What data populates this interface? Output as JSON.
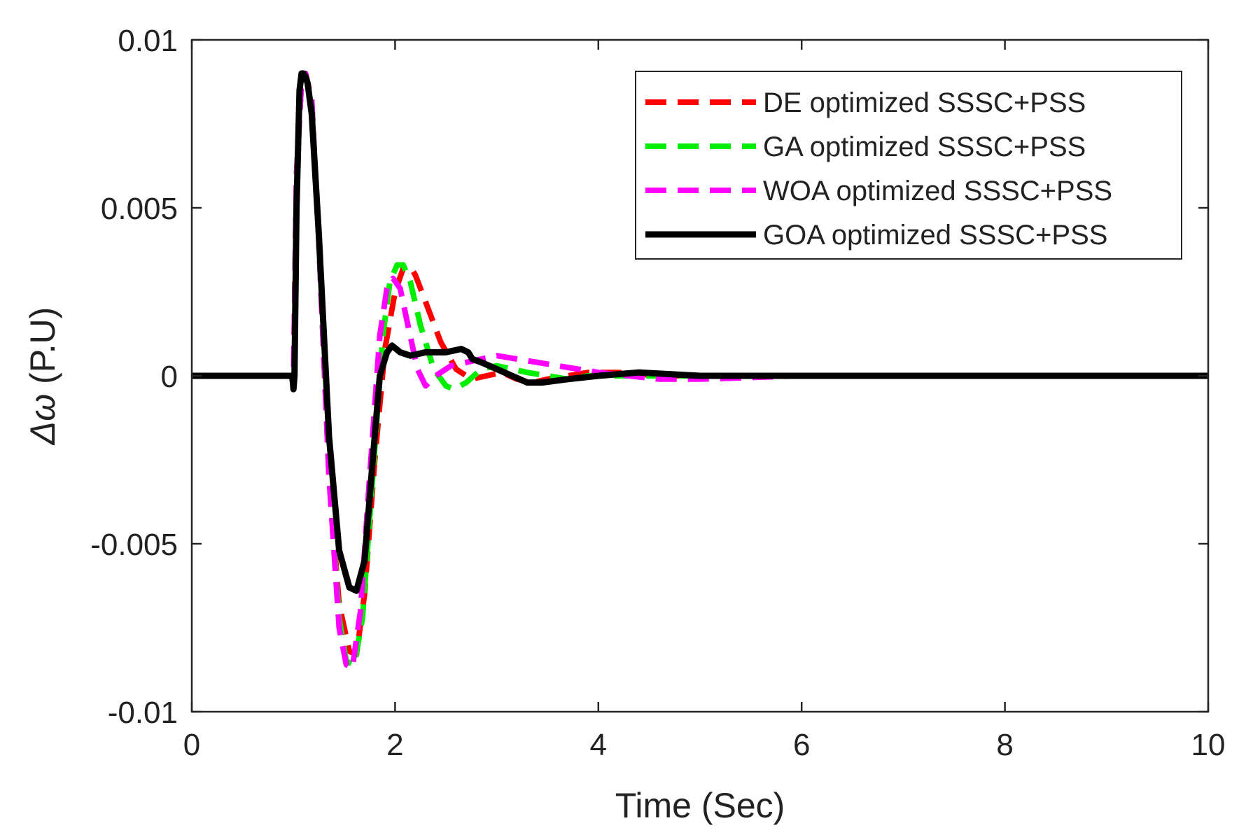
{
  "chart_data": {
    "type": "line",
    "title": "",
    "xlabel": "Time (Sec)",
    "ylabel_symbol": "Δω",
    "ylabel_unit": "(P.U)",
    "xlim": [
      0,
      10
    ],
    "ylim": [
      -0.01,
      0.01
    ],
    "xticks": [
      0,
      2,
      4,
      6,
      8,
      10
    ],
    "xtick_labels": [
      "0",
      "2",
      "4",
      "6",
      "8",
      "10"
    ],
    "yticks": [
      -0.01,
      -0.005,
      0,
      0.005,
      0.01
    ],
    "ytick_labels": [
      "-0.01",
      "-0.005",
      "0",
      "0.005",
      "0.01"
    ],
    "grid": false,
    "legend_position": "top-right",
    "series": [
      {
        "name": "DE optimized SSSC+PSS",
        "color": "#ff0000",
        "style": "dashed",
        "x": [
          0,
          0.98,
          1.0,
          1.03,
          1.08,
          1.12,
          1.18,
          1.25,
          1.35,
          1.45,
          1.55,
          1.62,
          1.7,
          1.8,
          1.9,
          2.0,
          2.08,
          2.14,
          2.2,
          2.3,
          2.45,
          2.6,
          2.75,
          2.9,
          3.05,
          3.2,
          3.35,
          3.5,
          3.7,
          3.9,
          4.2,
          4.6,
          5.0,
          6.0,
          7.0,
          8.0,
          10.0
        ],
        "y": [
          0,
          0,
          -0.0003,
          0.006,
          0.0088,
          0.009,
          0.0082,
          0.004,
          -0.003,
          -0.0068,
          -0.0082,
          -0.0083,
          -0.0065,
          -0.0025,
          0.0008,
          0.0025,
          0.0032,
          0.0033,
          0.003,
          0.0022,
          0.001,
          0.0002,
          -0.0001,
          0.0,
          0.0001,
          -0.0001,
          -0.0002,
          -0.0001,
          0.0,
          0.0001,
          0.0001,
          0.0,
          0.0,
          0.0,
          0.0,
          0.0,
          0.0
        ]
      },
      {
        "name": "GA optimized SSSC+PSS",
        "color": "#00ee00",
        "style": "dashed",
        "x": [
          0,
          0.98,
          1.0,
          1.03,
          1.08,
          1.12,
          1.18,
          1.25,
          1.35,
          1.45,
          1.52,
          1.6,
          1.68,
          1.78,
          1.88,
          1.95,
          2.02,
          2.08,
          2.15,
          2.25,
          2.38,
          2.5,
          2.58,
          2.7,
          2.85,
          3.0,
          3.15,
          3.3,
          3.5,
          3.7,
          3.9,
          4.2,
          4.6,
          5.0,
          6.0,
          7.0,
          10.0
        ],
        "y": [
          0,
          0,
          -0.0003,
          0.006,
          0.0088,
          0.009,
          0.0082,
          0.004,
          -0.003,
          -0.0072,
          -0.0085,
          -0.0086,
          -0.0072,
          -0.003,
          0.0012,
          0.0028,
          0.0033,
          0.0033,
          0.0028,
          0.0015,
          0.0002,
          -0.0003,
          -0.0004,
          -0.0002,
          0.0002,
          0.0003,
          0.0002,
          0.0001,
          0.0,
          -0.0001,
          0.0,
          0.0,
          0.0,
          0.0,
          0.0,
          0.0,
          0.0
        ]
      },
      {
        "name": "WOA optimized SSSC+PSS",
        "color": "#ff00ff",
        "style": "dashed",
        "x": [
          0,
          0.98,
          1.0,
          1.03,
          1.08,
          1.12,
          1.18,
          1.25,
          1.35,
          1.45,
          1.52,
          1.58,
          1.66,
          1.75,
          1.85,
          1.92,
          1.98,
          2.05,
          2.12,
          2.22,
          2.3,
          2.4,
          2.55,
          2.7,
          2.85,
          3.0,
          3.2,
          3.4,
          3.6,
          3.8,
          4.0,
          4.3,
          4.6,
          5.0,
          6.0,
          7.0,
          10.0
        ],
        "y": [
          0,
          0,
          -0.0003,
          0.006,
          0.0088,
          0.009,
          0.0082,
          0.004,
          -0.003,
          -0.0075,
          -0.0086,
          -0.0087,
          -0.007,
          -0.003,
          0.0012,
          0.0026,
          0.0029,
          0.0026,
          0.0016,
          0.0002,
          -0.0003,
          0.0,
          0.0003,
          0.0004,
          0.0005,
          0.0006,
          0.0005,
          0.0004,
          0.0003,
          0.0002,
          0.0001,
          0.0,
          -0.0001,
          -0.0001,
          0.0,
          0.0,
          0.0
        ]
      },
      {
        "name": "GOA optimized SSSC+PSS",
        "color": "#000000",
        "style": "solid",
        "x": [
          0,
          0.99,
          1.0,
          1.01,
          1.03,
          1.06,
          1.08,
          1.1,
          1.12,
          1.14,
          1.18,
          1.25,
          1.35,
          1.45,
          1.55,
          1.62,
          1.7,
          1.78,
          1.85,
          1.92,
          1.97,
          2.05,
          2.15,
          2.3,
          2.5,
          2.65,
          2.72,
          2.76,
          2.85,
          3.0,
          3.15,
          3.3,
          3.45,
          3.7,
          4.0,
          4.4,
          5.0,
          6.0,
          10.0
        ],
        "y": [
          0,
          0,
          -0.0004,
          0.0,
          0.005,
          0.0085,
          0.009,
          0.009,
          0.0089,
          0.0087,
          0.0078,
          0.0042,
          -0.0018,
          -0.0052,
          -0.0063,
          -0.0064,
          -0.0055,
          -0.0025,
          0.0,
          0.0007,
          0.0009,
          0.0007,
          0.0006,
          0.0007,
          0.0007,
          0.0008,
          0.0007,
          0.0005,
          0.0004,
          0.0002,
          0.0,
          -0.0002,
          -0.0002,
          -0.0001,
          0.0,
          0.0001,
          0.0,
          0.0,
          0.0
        ]
      }
    ]
  }
}
